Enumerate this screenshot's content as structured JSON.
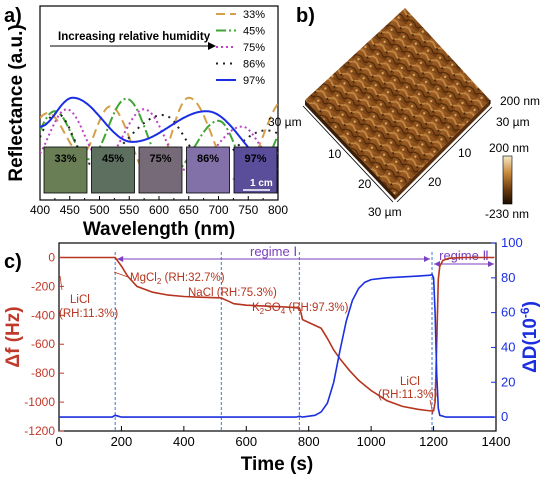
{
  "panel_labels": {
    "a": "a)",
    "b": "b)",
    "c": "c)"
  },
  "chart_data": [
    {
      "panel": "a",
      "type": "line",
      "xlabel": "Wavelength (nm)",
      "ylabel": "Reflectance (a.u.)",
      "xlim": [
        400,
        800
      ],
      "xticks": [
        "400",
        "450",
        "500",
        "550",
        "600",
        "650",
        "700",
        "750",
        "800"
      ],
      "y_ticks_shown": false,
      "annotation": "Increasing relative humidity",
      "legend_position": "top-right",
      "series": [
        {
          "name": "33%",
          "color": "#d4a04a",
          "dash": "9,5",
          "peaks": [
            [
              413,
              0.78
            ],
            [
              518,
              0.85
            ],
            [
              650,
              0.94
            ]
          ],
          "troughs": [
            [
              470,
              0.36
            ],
            [
              588,
              0.1
            ],
            [
              732,
              0.08
            ]
          ]
        },
        {
          "name": "45%",
          "color": "#3fa535",
          "dash": "10,3,2,3",
          "peaks": [
            [
              425,
              0.8
            ],
            [
              545,
              0.93
            ],
            [
              700,
              0.7
            ]
          ],
          "troughs": [
            [
              482,
              0.3
            ],
            [
              618,
              0.14
            ],
            [
              760,
              0.1
            ]
          ]
        },
        {
          "name": "75%",
          "color": "#c040c8",
          "dash": "2,3",
          "peaks": [
            [
              445,
              0.82
            ],
            [
              575,
              0.82
            ],
            [
              740,
              0.64
            ]
          ],
          "troughs": [
            [
              505,
              0.28
            ],
            [
              648,
              0.18
            ],
            [
              790,
              0.34
            ]
          ]
        },
        {
          "name": "86%",
          "color": "#222222",
          "dash": "2,5",
          "peaks": [
            [
              428,
              0.78
            ],
            [
              607,
              0.76
            ],
            [
              780,
              0.6
            ]
          ],
          "troughs": [
            [
              486,
              0.25
            ],
            [
              682,
              0.26
            ]
          ]
        },
        {
          "name": "97%",
          "color": "#1a2ee6",
          "dash": "",
          "peaks": [
            [
              455,
              0.94
            ],
            [
              680,
              0.8
            ]
          ],
          "troughs": [
            [
              400,
              0.64
            ],
            [
              555,
              0.48
            ],
            [
              800,
              0.2
            ]
          ]
        }
      ],
      "swatches": [
        {
          "label": "33%",
          "color": "#6a7e55"
        },
        {
          "label": "45%",
          "color": "#5d7060"
        },
        {
          "label": "75%",
          "color": "#776a78"
        },
        {
          "label": "86%",
          "color": "#8270a8"
        },
        {
          "label": "97%",
          "color": "#5a4e9a"
        }
      ],
      "scale_bar": "1 cm"
    },
    {
      "panel": "b",
      "type": "heatmap",
      "description_labels": {
        "x_size": "30 µm",
        "y_size": "30 µm",
        "x_size_left": "30 µm",
        "y_size_front": "30 µm",
        "z_top": "200 nm"
      },
      "x_ticks": [
        "10",
        "20"
      ],
      "y_ticks": [
        "10",
        "20"
      ],
      "colorbar": {
        "max": "200 nm",
        "min": "-230 nm",
        "colors": [
          "#1a0d00",
          "#6b3a10",
          "#c98a3a",
          "#f5e8c8"
        ]
      }
    },
    {
      "panel": "c",
      "type": "line",
      "xlabel": "Time (s)",
      "ylabel_left": "Δf (Hz)",
      "ylabel_right": "ΔD(10^-6)",
      "ylabel_right_parts": {
        "base": "ΔD(10",
        "exp": "-6",
        "close": ")"
      },
      "xlim": [
        0,
        1400
      ],
      "ylim_left": [
        -1200,
        100
      ],
      "ylim_right": [
        -8,
        100
      ],
      "xticks": [
        0,
        200,
        400,
        600,
        800,
        1000,
        1200,
        1400
      ],
      "yticks_left": [
        0,
        -200,
        -400,
        -600,
        -800,
        -1000,
        -1200
      ],
      "yticks_right": [
        0,
        20,
        40,
        60,
        80,
        100
      ],
      "regions": [
        {
          "label": "regime Ⅰ",
          "start": 180,
          "end": 1195
        },
        {
          "label": "regime Ⅱ",
          "start": 1195,
          "end": 1400
        }
      ],
      "event_lines": [
        180,
        520,
        770,
        1195
      ],
      "annotations": [
        {
          "text": "LiCl",
          "sub": "(RH:11.3%)"
        },
        {
          "text": "MgCl",
          "subscript": "2",
          "tail": " (RH:32.7%)"
        },
        {
          "text": "NaCl (RH:75.3%)"
        },
        {
          "text": "K",
          "subscript": "2",
          "tail": "SO",
          "subscript2": "4",
          "tail2": " (RH:97.3%)"
        },
        {
          "text": "LiCl",
          "sub": "(RH:11.3%)"
        }
      ],
      "series": [
        {
          "name": "Δf",
          "axis": "left",
          "color": "#b5351e",
          "x": [
            0,
            175,
            180,
            200,
            220,
            250,
            300,
            350,
            400,
            450,
            500,
            520,
            540,
            560,
            600,
            650,
            700,
            750,
            770,
            775,
            780,
            800,
            820,
            840,
            860,
            880,
            900,
            930,
            960,
            1000,
            1050,
            1100,
            1150,
            1180,
            1195,
            1200,
            1205,
            1210,
            1215,
            1220,
            1230,
            1250,
            1300,
            1350,
            1395
          ],
          "y": [
            0,
            0,
            0,
            -60,
            -130,
            -200,
            -240,
            -260,
            -270,
            -275,
            -278,
            -280,
            -300,
            -320,
            -330,
            -335,
            -340,
            -345,
            -350,
            -380,
            -430,
            -450,
            -470,
            -490,
            -560,
            -640,
            -700,
            -780,
            -850,
            -920,
            -990,
            -1030,
            -1050,
            -1058,
            -1062,
            -1060,
            -1000,
            -600,
            -150,
            -60,
            -20,
            -5,
            0,
            0,
            0
          ]
        },
        {
          "name": "ΔD",
          "axis": "right",
          "color": "#1b2fe0",
          "x": [
            0,
            170,
            180,
            190,
            200,
            400,
            600,
            760,
            770,
            780,
            800,
            820,
            840,
            860,
            880,
            900,
            920,
            940,
            960,
            980,
            1000,
            1050,
            1100,
            1150,
            1190,
            1195,
            1200,
            1205,
            1210,
            1215,
            1220,
            1240,
            1300,
            1395
          ],
          "y": [
            0,
            0,
            1,
            0.5,
            0,
            0,
            0,
            0,
            0.5,
            0,
            0.5,
            1,
            3,
            8,
            20,
            38,
            55,
            67,
            74,
            77.5,
            79,
            80,
            80.5,
            81,
            81.5,
            82,
            80,
            60,
            25,
            5,
            1,
            0,
            0,
            0
          ]
        }
      ]
    }
  ]
}
